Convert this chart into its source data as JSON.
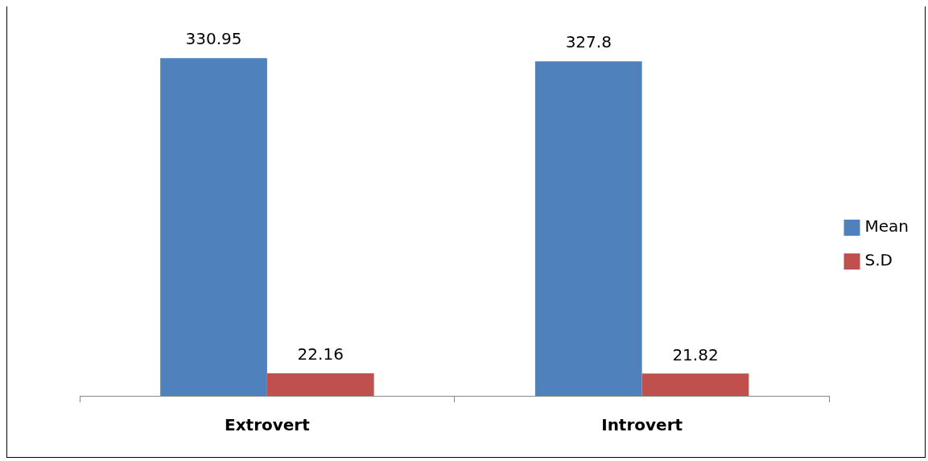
{
  "chart_data": {
    "type": "bar",
    "categories": [
      "Extrovert",
      "Introvert"
    ],
    "series": [
      {
        "name": "Mean",
        "color": "#4f81bd",
        "values": [
          330.95,
          327.8
        ]
      },
      {
        "name": "S.D",
        "color": "#c0504d",
        "values": [
          22.16,
          21.82
        ]
      }
    ],
    "data_labels": true,
    "grid": false,
    "legend": "right"
  }
}
